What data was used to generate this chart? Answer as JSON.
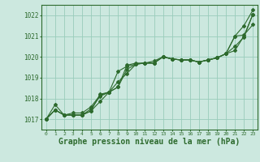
{
  "bg_color": "#cce8df",
  "grid_color": "#99ccbb",
  "line_color": "#2d6a2d",
  "xlabel": "Graphe pression niveau de la mer (hPa)",
  "xlabel_fontsize": 7,
  "ylabel_ticks": [
    1017,
    1018,
    1019,
    1020,
    1021,
    1022
  ],
  "xlim": [
    -0.5,
    23.5
  ],
  "ylim": [
    1016.5,
    1022.5
  ],
  "xticks": [
    0,
    1,
    2,
    3,
    4,
    5,
    6,
    7,
    8,
    9,
    10,
    11,
    12,
    13,
    14,
    15,
    16,
    17,
    18,
    19,
    20,
    21,
    22,
    23
  ],
  "series": [
    [
      1017.0,
      1017.7,
      1017.2,
      1017.2,
      1017.2,
      1017.5,
      1018.1,
      1018.3,
      1018.55,
      1019.4,
      1019.65,
      1019.7,
      1019.7,
      1020.0,
      1019.9,
      1019.85,
      1019.85,
      1019.75,
      1019.85,
      1019.95,
      1020.15,
      1021.0,
      1021.5,
      1022.25
    ],
    [
      1017.0,
      1017.45,
      1017.2,
      1017.2,
      1017.2,
      1017.4,
      1017.85,
      1018.3,
      1018.8,
      1019.2,
      1019.65,
      1019.7,
      1019.7,
      1020.0,
      1019.9,
      1019.85,
      1019.85,
      1019.75,
      1019.85,
      1019.95,
      1020.15,
      1020.5,
      1020.95,
      1022.05
    ],
    [
      1017.0,
      1017.45,
      1017.2,
      1017.3,
      1017.3,
      1017.6,
      1018.15,
      1018.3,
      1019.3,
      1019.55,
      1019.65,
      1019.7,
      1019.8,
      1020.0,
      1019.9,
      1019.85,
      1019.85,
      1019.75,
      1019.85,
      1019.95,
      1020.15,
      1020.3,
      1021.0,
      1022.05
    ],
    [
      1017.0,
      1017.45,
      1017.2,
      1017.2,
      1017.2,
      1017.4,
      1018.2,
      1018.3,
      1018.55,
      1019.6,
      1019.7,
      1019.7,
      1019.7,
      1020.0,
      1019.9,
      1019.85,
      1019.85,
      1019.75,
      1019.85,
      1019.95,
      1020.15,
      1021.0,
      1021.05,
      1021.55
    ]
  ]
}
